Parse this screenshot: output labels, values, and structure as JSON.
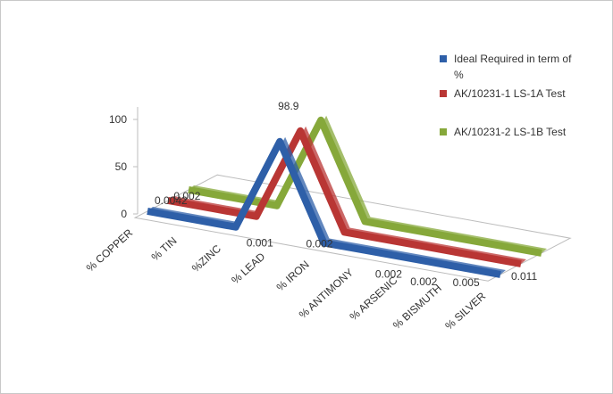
{
  "chart_data": {
    "type": "line",
    "style": "3d-ribbon",
    "categories": [
      "% COPPER",
      "% TIN",
      "%ZINC",
      "% LEAD",
      "% IRON",
      "% ANTIMONY",
      "% ARSENIC",
      "% BISMUTH",
      "% SILVER"
    ],
    "series": [
      {
        "name": "Ideal Required in term of %",
        "color": "#2e5fa8",
        "values": [
          0.0042,
          0.002,
          0.001,
          98.9,
          0.002,
          0.002,
          0.002,
          0.005,
          0.011
        ]
      },
      {
        "name": "AK/10231-1 LS-1A Test",
        "color": "#b93634",
        "values": [
          0.0042,
          0.002,
          0.001,
          98.9,
          0.002,
          0.002,
          0.002,
          0.005,
          0.011
        ]
      },
      {
        "name": "AK/10231-2 LS-1B Test",
        "color": "#86a83a",
        "values": [
          0.0042,
          0.002,
          0.001,
          98.9,
          0.002,
          0.002,
          0.002,
          0.005,
          0.011
        ]
      }
    ],
    "data_labels": [
      "0.0042",
      "0.002",
      "0.001",
      "98.9",
      "0.002",
      "0.002",
      "0.002",
      "0.005",
      "0.011"
    ],
    "y_ticks": [
      0,
      50,
      100
    ],
    "ylim": [
      0,
      100
    ],
    "legend_position": "right"
  }
}
